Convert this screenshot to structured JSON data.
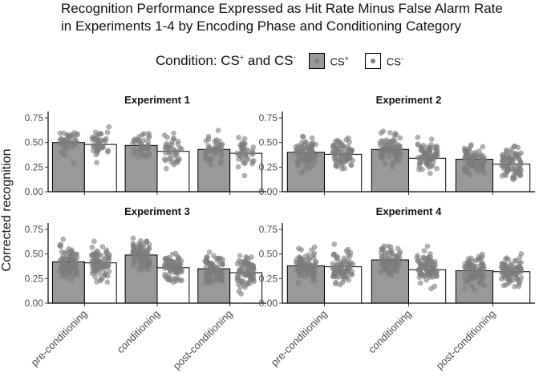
{
  "title": "Recognition Performance Expressed as Hit Rate Minus False Alarm Rate in Experiments 1-4 by Encoding Phase and Conditioning Category",
  "legend": {
    "title_prefix": "Condition:  CS",
    "title_sup1": "+",
    "title_mid": "  and  CS",
    "title_sup2": "-",
    "items": [
      {
        "label": "CS",
        "sup": "+",
        "fill": "#999999"
      },
      {
        "label": "CS",
        "sup": "-",
        "fill": "#ffffff"
      }
    ]
  },
  "chart_data": {
    "type": "bar",
    "ylabel": "Corrected recognition",
    "xlabel": "",
    "ylim": [
      0,
      0.75
    ],
    "yticks": [
      "0.00",
      "0.25",
      "0.50",
      "0.75"
    ],
    "categories": [
      "pre-conditioning",
      "conditioning",
      "post-conditioning"
    ],
    "colors": {
      "cs_plus": "#999999",
      "cs_minus": "#ffffff",
      "points": "#7f7f7f"
    },
    "panels": [
      {
        "title": "Experiment 1",
        "series": [
          {
            "name": "CS+",
            "values": [
              0.5,
              0.47,
              0.43
            ]
          },
          {
            "name": "CS-",
            "values": [
              0.48,
              0.41,
              0.39
            ]
          }
        ]
      },
      {
        "title": "Experiment 2",
        "series": [
          {
            "name": "CS+",
            "values": [
              0.4,
              0.43,
              0.33
            ]
          },
          {
            "name": "CS-",
            "values": [
              0.38,
              0.34,
              0.28
            ]
          }
        ]
      },
      {
        "title": "Experiment 3",
        "series": [
          {
            "name": "CS+",
            "values": [
              0.42,
              0.49,
              0.35
            ]
          },
          {
            "name": "CS-",
            "values": [
              0.41,
              0.36,
              0.31
            ]
          }
        ]
      },
      {
        "title": "Experiment 4",
        "series": [
          {
            "name": "CS+",
            "values": [
              0.38,
              0.44,
              0.33
            ]
          },
          {
            "name": "CS-",
            "values": [
              0.37,
              0.34,
              0.32
            ]
          }
        ]
      }
    ]
  }
}
